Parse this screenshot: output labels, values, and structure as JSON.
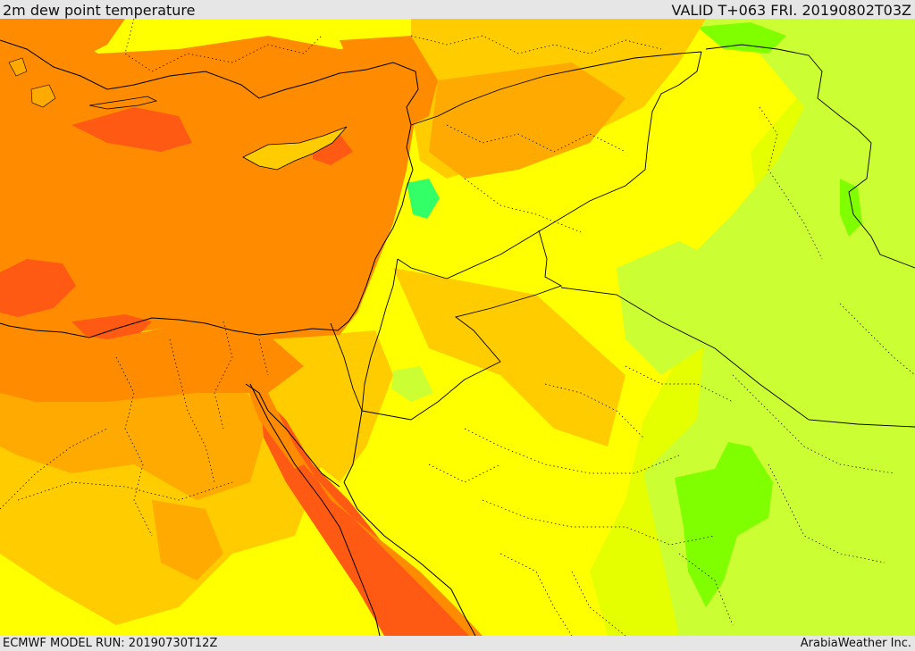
{
  "header": {
    "title": "2m dew point temperature",
    "valid": "VALID T+063 FRI. 20190802T03Z"
  },
  "footer": {
    "model_run": "ECMWF MODEL RUN: 20190730T12Z",
    "credit": "ArabiaWeather Inc."
  },
  "colors": {
    "deep_orange": "#ff5a14",
    "orange": "#ff8c00",
    "light_orange": "#ffaa00",
    "amber": "#ffcc00",
    "yellow": "#ffff00",
    "yellow_green": "#e6ff00",
    "light_green": "#ccff33",
    "green": "#80ff00",
    "bright_green": "#33ff66",
    "border_line": "#000000"
  }
}
